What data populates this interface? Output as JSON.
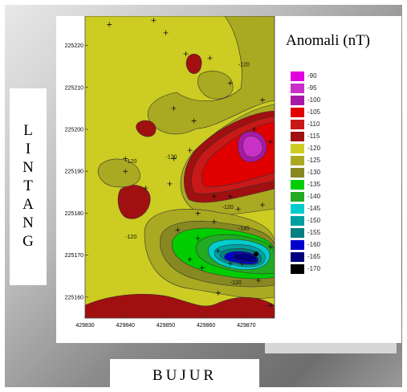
{
  "chart_data": {
    "type": "contour",
    "title": "",
    "legend_title": "Anomali (nT)",
    "xlabel": "BUJUR",
    "ylabel": "LINTANG",
    "xlim": [
      429830,
      429877
    ],
    "ylim": [
      225155,
      225227
    ],
    "x_ticks": [
      "429830",
      "429840",
      "429850",
      "429860",
      "429870"
    ],
    "x_tick_values": [
      429830,
      429840,
      429850,
      429860,
      429870
    ],
    "y_ticks": [
      "225160",
      "225170",
      "225180",
      "225190",
      "225200",
      "225210",
      "225220"
    ],
    "y_tick_values": [
      225160,
      225170,
      225180,
      225190,
      225200,
      225210,
      225220
    ],
    "levels": [
      -90,
      -95,
      -100,
      -105,
      -110,
      -115,
      -120,
      -125,
      -130,
      -135,
      -140,
      -145,
      -150,
      -155,
      -160,
      -165,
      -170
    ],
    "level_labels": [
      "-90",
      "-95",
      "-100",
      "-105",
      "-110",
      "-115",
      "-120",
      "-125",
      "-130",
      "-135",
      "-140",
      "-145",
      "-150",
      "-155",
      "-160",
      "-165",
      "-170"
    ],
    "level_colors": [
      "#e000e0",
      "#c830c8",
      "#a818a8",
      "#e00000",
      "#c81818",
      "#a01010",
      "#cccc22",
      "#aaaa22",
      "#888822",
      "#00cc00",
      "#22aa22",
      "#00cccc",
      "#00a0a0",
      "#008080",
      "#0000cc",
      "#000080",
      "#000000"
    ],
    "contour_labels": [
      {
        "text": "-120",
        "x": 429868,
        "y": 225215
      },
      {
        "text": "-120",
        "x": 429840,
        "y": 225192
      },
      {
        "text": "-120",
        "x": 429850,
        "y": 225193
      },
      {
        "text": "-120",
        "x": 429864,
        "y": 225181
      },
      {
        "text": "-120",
        "x": 429840,
        "y": 225174
      },
      {
        "text": "-120",
        "x": 429866,
        "y": 225163
      },
      {
        "text": "-145",
        "x": 429868,
        "y": 225176
      }
    ],
    "stations": [
      [
        429836,
        225225
      ],
      [
        429847,
        225226
      ],
      [
        429850,
        225223
      ],
      [
        429855,
        225218
      ],
      [
        429861,
        225217
      ],
      [
        429866,
        225211
      ],
      [
        429874,
        225207
      ],
      [
        429852,
        225205
      ],
      [
        429857,
        225202
      ],
      [
        429856,
        225195
      ],
      [
        429852,
        225193
      ],
      [
        429840,
        225193
      ],
      [
        429840,
        225190
      ],
      [
        429845,
        225186
      ],
      [
        429851,
        225187
      ],
      [
        429862,
        225184
      ],
      [
        429866,
        225184
      ],
      [
        429868,
        225181
      ],
      [
        429874,
        225182
      ],
      [
        429862,
        225178
      ],
      [
        429853,
        225176
      ],
      [
        429858,
        225174
      ],
      [
        429863,
        225171
      ],
      [
        429866,
        225168
      ],
      [
        429856,
        225169
      ],
      [
        429859,
        225167
      ],
      [
        429876,
        225172
      ],
      [
        429869,
        225168
      ],
      [
        429873,
        225164
      ],
      [
        429863,
        225161
      ],
      [
        429876,
        225158
      ],
      [
        429872,
        225200
      ],
      [
        429876,
        225197
      ],
      [
        429858,
        225180
      ]
    ]
  }
}
